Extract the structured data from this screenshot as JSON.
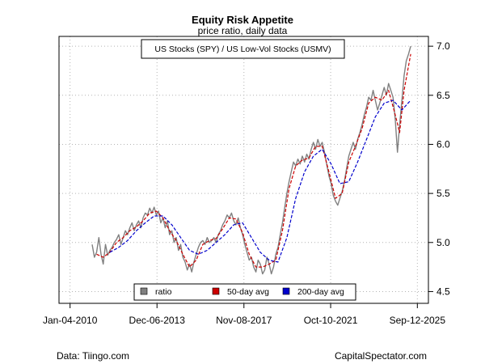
{
  "chart_data": {
    "type": "line",
    "title": "Equity Risk Appetite",
    "subtitle": "price ratio, daily data",
    "series_label": "US Stocks (SPY) / US Low-Vol Stocks (USMV)",
    "x_range": [
      2009.5,
      2026.2
    ],
    "ylim": [
      4.38,
      7.1
    ],
    "x_ticks": [
      {
        "value": 2010.0,
        "label": "Jan-04-2010"
      },
      {
        "value": 2013.93,
        "label": "Dec-06-2013"
      },
      {
        "value": 2017.86,
        "label": "Nov-08-2017"
      },
      {
        "value": 2021.78,
        "label": "Oct-10-2021"
      },
      {
        "value": 2025.7,
        "label": "Sep-12-2025"
      }
    ],
    "y_ticks": [
      4.5,
      5.0,
      5.5,
      6.0,
      6.5,
      7.0
    ],
    "y_tick_labels": [
      "4.5",
      "5.0",
      "5.5",
      "6.0",
      "6.5",
      "7.0"
    ],
    "grid": true,
    "series": [
      {
        "name": "ratio",
        "color": "#808080",
        "style": "solid",
        "points": [
          [
            2011.0,
            4.98
          ],
          [
            2011.1,
            4.85
          ],
          [
            2011.2,
            4.9
          ],
          [
            2011.3,
            5.05
          ],
          [
            2011.4,
            4.88
          ],
          [
            2011.5,
            4.78
          ],
          [
            2011.6,
            4.98
          ],
          [
            2011.7,
            4.87
          ],
          [
            2011.8,
            4.92
          ],
          [
            2011.9,
            4.95
          ],
          [
            2012.0,
            5.0
          ],
          [
            2012.1,
            5.03
          ],
          [
            2012.2,
            5.08
          ],
          [
            2012.3,
            4.98
          ],
          [
            2012.4,
            5.05
          ],
          [
            2012.5,
            5.12
          ],
          [
            2012.6,
            5.08
          ],
          [
            2012.7,
            5.15
          ],
          [
            2012.8,
            5.2
          ],
          [
            2012.9,
            5.12
          ],
          [
            2013.0,
            5.18
          ],
          [
            2013.1,
            5.22
          ],
          [
            2013.2,
            5.15
          ],
          [
            2013.3,
            5.25
          ],
          [
            2013.4,
            5.3
          ],
          [
            2013.5,
            5.28
          ],
          [
            2013.6,
            5.35
          ],
          [
            2013.7,
            5.3
          ],
          [
            2013.8,
            5.36
          ],
          [
            2013.9,
            5.28
          ],
          [
            2014.0,
            5.32
          ],
          [
            2014.1,
            5.2
          ],
          [
            2014.2,
            5.25
          ],
          [
            2014.3,
            5.15
          ],
          [
            2014.4,
            5.22
          ],
          [
            2014.5,
            5.08
          ],
          [
            2014.6,
            5.12
          ],
          [
            2014.7,
            5.0
          ],
          [
            2014.8,
            5.05
          ],
          [
            2014.9,
            4.92
          ],
          [
            2015.0,
            4.98
          ],
          [
            2015.1,
            4.85
          ],
          [
            2015.2,
            4.8
          ],
          [
            2015.3,
            4.72
          ],
          [
            2015.4,
            4.78
          ],
          [
            2015.5,
            4.7
          ],
          [
            2015.6,
            4.8
          ],
          [
            2015.7,
            4.88
          ],
          [
            2015.8,
            4.95
          ],
          [
            2015.9,
            5.0
          ],
          [
            2016.0,
            5.02
          ],
          [
            2016.1,
            4.98
          ],
          [
            2016.2,
            5.05
          ],
          [
            2016.3,
            5.0
          ],
          [
            2016.4,
            5.02
          ],
          [
            2016.5,
            5.05
          ],
          [
            2016.6,
            5.0
          ],
          [
            2016.7,
            5.08
          ],
          [
            2016.8,
            5.12
          ],
          [
            2016.9,
            5.18
          ],
          [
            2017.0,
            5.22
          ],
          [
            2017.1,
            5.28
          ],
          [
            2017.2,
            5.25
          ],
          [
            2017.3,
            5.3
          ],
          [
            2017.4,
            5.22
          ],
          [
            2017.5,
            5.18
          ],
          [
            2017.6,
            5.25
          ],
          [
            2017.7,
            5.15
          ],
          [
            2017.8,
            5.08
          ],
          [
            2017.9,
            4.98
          ],
          [
            2018.0,
            4.9
          ],
          [
            2018.1,
            4.82
          ],
          [
            2018.2,
            4.85
          ],
          [
            2018.3,
            4.75
          ],
          [
            2018.4,
            4.7
          ],
          [
            2018.5,
            4.82
          ],
          [
            2018.6,
            4.78
          ],
          [
            2018.7,
            4.68
          ],
          [
            2018.8,
            4.72
          ],
          [
            2018.9,
            4.85
          ],
          [
            2019.0,
            4.78
          ],
          [
            2019.1,
            4.68
          ],
          [
            2019.2,
            4.75
          ],
          [
            2019.3,
            4.88
          ],
          [
            2019.4,
            4.95
          ],
          [
            2019.5,
            5.08
          ],
          [
            2019.6,
            5.2
          ],
          [
            2019.7,
            5.35
          ],
          [
            2019.8,
            5.5
          ],
          [
            2019.9,
            5.62
          ],
          [
            2020.0,
            5.72
          ],
          [
            2020.1,
            5.82
          ],
          [
            2020.2,
            5.78
          ],
          [
            2020.3,
            5.85
          ],
          [
            2020.4,
            5.8
          ],
          [
            2020.5,
            5.88
          ],
          [
            2020.6,
            5.82
          ],
          [
            2020.7,
            5.9
          ],
          [
            2020.8,
            5.85
          ],
          [
            2020.9,
            5.95
          ],
          [
            2021.0,
            6.02
          ],
          [
            2021.1,
            5.95
          ],
          [
            2021.2,
            6.05
          ],
          [
            2021.3,
            5.98
          ],
          [
            2021.4,
            6.02
          ],
          [
            2021.5,
            5.92
          ],
          [
            2021.6,
            5.8
          ],
          [
            2021.7,
            5.68
          ],
          [
            2021.8,
            5.6
          ],
          [
            2021.9,
            5.48
          ],
          [
            2022.0,
            5.42
          ],
          [
            2022.1,
            5.38
          ],
          [
            2022.2,
            5.45
          ],
          [
            2022.3,
            5.52
          ],
          [
            2022.4,
            5.62
          ],
          [
            2022.5,
            5.75
          ],
          [
            2022.6,
            5.88
          ],
          [
            2022.7,
            5.95
          ],
          [
            2022.8,
            6.02
          ],
          [
            2022.9,
            5.95
          ],
          [
            2023.0,
            6.05
          ],
          [
            2023.1,
            6.12
          ],
          [
            2023.2,
            6.2
          ],
          [
            2023.3,
            6.3
          ],
          [
            2023.4,
            6.38
          ],
          [
            2023.5,
            6.48
          ],
          [
            2023.6,
            6.45
          ],
          [
            2023.7,
            6.55
          ],
          [
            2023.8,
            6.45
          ],
          [
            2023.9,
            6.35
          ],
          [
            2024.0,
            6.42
          ],
          [
            2024.1,
            6.5
          ],
          [
            2024.2,
            6.58
          ],
          [
            2024.3,
            6.5
          ],
          [
            2024.4,
            6.62
          ],
          [
            2024.5,
            6.55
          ],
          [
            2024.6,
            6.48
          ],
          [
            2024.7,
            6.25
          ],
          [
            2024.8,
            5.92
          ],
          [
            2024.9,
            6.2
          ],
          [
            2025.0,
            6.45
          ],
          [
            2025.1,
            6.7
          ],
          [
            2025.2,
            6.85
          ],
          [
            2025.3,
            6.92
          ],
          [
            2025.4,
            7.0
          ]
        ]
      },
      {
        "name": "50-day avg",
        "color": "#cc0000",
        "style": "dashed",
        "points": [
          [
            2011.2,
            4.88
          ],
          [
            2011.5,
            4.85
          ],
          [
            2011.8,
            4.9
          ],
          [
            2012.1,
            5.0
          ],
          [
            2012.4,
            5.05
          ],
          [
            2012.7,
            5.12
          ],
          [
            2013.0,
            5.16
          ],
          [
            2013.3,
            5.22
          ],
          [
            2013.6,
            5.3
          ],
          [
            2013.9,
            5.32
          ],
          [
            2014.2,
            5.25
          ],
          [
            2014.5,
            5.12
          ],
          [
            2014.8,
            5.02
          ],
          [
            2015.1,
            4.88
          ],
          [
            2015.4,
            4.75
          ],
          [
            2015.7,
            4.82
          ],
          [
            2016.0,
            4.98
          ],
          [
            2016.3,
            5.02
          ],
          [
            2016.6,
            5.04
          ],
          [
            2016.9,
            5.14
          ],
          [
            2017.2,
            5.25
          ],
          [
            2017.5,
            5.24
          ],
          [
            2017.8,
            5.1
          ],
          [
            2018.1,
            4.88
          ],
          [
            2018.4,
            4.75
          ],
          [
            2018.7,
            4.75
          ],
          [
            2019.0,
            4.78
          ],
          [
            2019.3,
            4.82
          ],
          [
            2019.6,
            5.12
          ],
          [
            2019.9,
            5.55
          ],
          [
            2020.2,
            5.78
          ],
          [
            2020.5,
            5.84
          ],
          [
            2020.8,
            5.86
          ],
          [
            2021.1,
            5.98
          ],
          [
            2021.4,
            5.98
          ],
          [
            2021.7,
            5.72
          ],
          [
            2022.0,
            5.45
          ],
          [
            2022.3,
            5.5
          ],
          [
            2022.6,
            5.82
          ],
          [
            2022.9,
            5.98
          ],
          [
            2023.2,
            6.16
          ],
          [
            2023.5,
            6.42
          ],
          [
            2023.8,
            6.48
          ],
          [
            2024.1,
            6.45
          ],
          [
            2024.4,
            6.55
          ],
          [
            2024.7,
            6.3
          ],
          [
            2024.9,
            6.12
          ],
          [
            2025.1,
            6.55
          ],
          [
            2025.4,
            6.92
          ]
        ]
      },
      {
        "name": "200-day avg",
        "color": "#0000cc",
        "style": "dashed",
        "points": [
          [
            2011.8,
            4.9
          ],
          [
            2012.2,
            4.95
          ],
          [
            2012.6,
            5.02
          ],
          [
            2013.0,
            5.12
          ],
          [
            2013.4,
            5.2
          ],
          [
            2013.8,
            5.27
          ],
          [
            2014.2,
            5.27
          ],
          [
            2014.6,
            5.18
          ],
          [
            2015.0,
            5.05
          ],
          [
            2015.4,
            4.92
          ],
          [
            2015.8,
            4.88
          ],
          [
            2016.2,
            4.92
          ],
          [
            2016.6,
            5.0
          ],
          [
            2017.0,
            5.08
          ],
          [
            2017.4,
            5.18
          ],
          [
            2017.8,
            5.2
          ],
          [
            2018.2,
            5.05
          ],
          [
            2018.6,
            4.9
          ],
          [
            2019.0,
            4.82
          ],
          [
            2019.4,
            4.8
          ],
          [
            2019.8,
            5.05
          ],
          [
            2020.2,
            5.45
          ],
          [
            2020.6,
            5.72
          ],
          [
            2021.0,
            5.88
          ],
          [
            2021.4,
            5.95
          ],
          [
            2021.8,
            5.8
          ],
          [
            2022.2,
            5.6
          ],
          [
            2022.6,
            5.62
          ],
          [
            2023.0,
            5.82
          ],
          [
            2023.4,
            6.05
          ],
          [
            2023.8,
            6.28
          ],
          [
            2024.2,
            6.42
          ],
          [
            2024.6,
            6.45
          ],
          [
            2025.0,
            6.35
          ],
          [
            2025.4,
            6.45
          ]
        ]
      }
    ],
    "legend": {
      "placement": "bottom-center",
      "entries": [
        "ratio",
        "50-day avg",
        "200-day avg"
      ]
    },
    "footer_left": "Data: Tiingo.com",
    "footer_right": "CapitalSpectator.com"
  },
  "colors": {
    "ratio": "#808080",
    "ma50": "#cc0000",
    "ma200": "#0000cc",
    "grid": "#b4b4b4"
  }
}
